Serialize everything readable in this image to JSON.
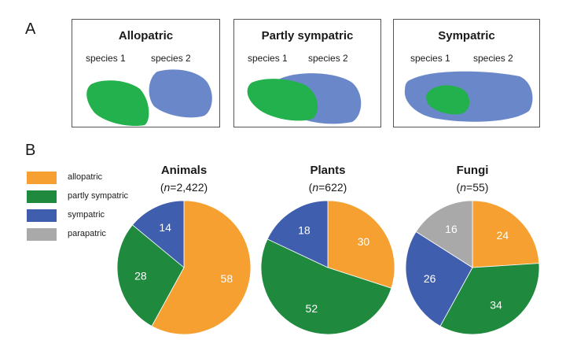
{
  "panel_a": {
    "letter": "A",
    "boxes": [
      {
        "title": "Allopatric",
        "species1": "species 1",
        "species2": "species 2"
      },
      {
        "title": "Partly sympatric",
        "species1": "species 1",
        "species2": "species 2"
      },
      {
        "title": "Sympatric",
        "species1": "species 1",
        "species2": "species 2"
      }
    ]
  },
  "panel_b": {
    "letter": "B",
    "legend": [
      {
        "label": "allopatric",
        "color": "#f5a030"
      },
      {
        "label": "partly sympatric",
        "color": "#1f8a3e"
      },
      {
        "label": "sympatric",
        "color": "#3f5fae"
      },
      {
        "label": "parapatric",
        "color": "#a9a9a9"
      }
    ]
  },
  "colors": {
    "species1_green": "#22b14c",
    "species2_blue": "#6a88c9"
  },
  "chart_data": [
    {
      "type": "pie",
      "title": "Animals",
      "n_label_prefix": "(",
      "n_label_var": "n",
      "n_label_rest": "=2,422)",
      "categories": [
        "allopatric",
        "partly sympatric",
        "sympatric"
      ],
      "values": [
        58,
        28,
        14
      ],
      "colors": [
        "#f5a030",
        "#1f8a3e",
        "#3f5fae"
      ]
    },
    {
      "type": "pie",
      "title": "Plants",
      "n_label_prefix": "(",
      "n_label_var": "n",
      "n_label_rest": "=622)",
      "categories": [
        "allopatric",
        "partly sympatric",
        "sympatric"
      ],
      "values": [
        30,
        52,
        18
      ],
      "colors": [
        "#f5a030",
        "#1f8a3e",
        "#3f5fae"
      ]
    },
    {
      "type": "pie",
      "title": "Fungi",
      "n_label_prefix": "(",
      "n_label_var": "n",
      "n_label_rest": "=55)",
      "categories": [
        "allopatric",
        "partly sympatric",
        "sympatric",
        "parapatric"
      ],
      "values": [
        24,
        34,
        26,
        16
      ],
      "colors": [
        "#f5a030",
        "#1f8a3e",
        "#3f5fae",
        "#a9a9a9"
      ]
    }
  ]
}
